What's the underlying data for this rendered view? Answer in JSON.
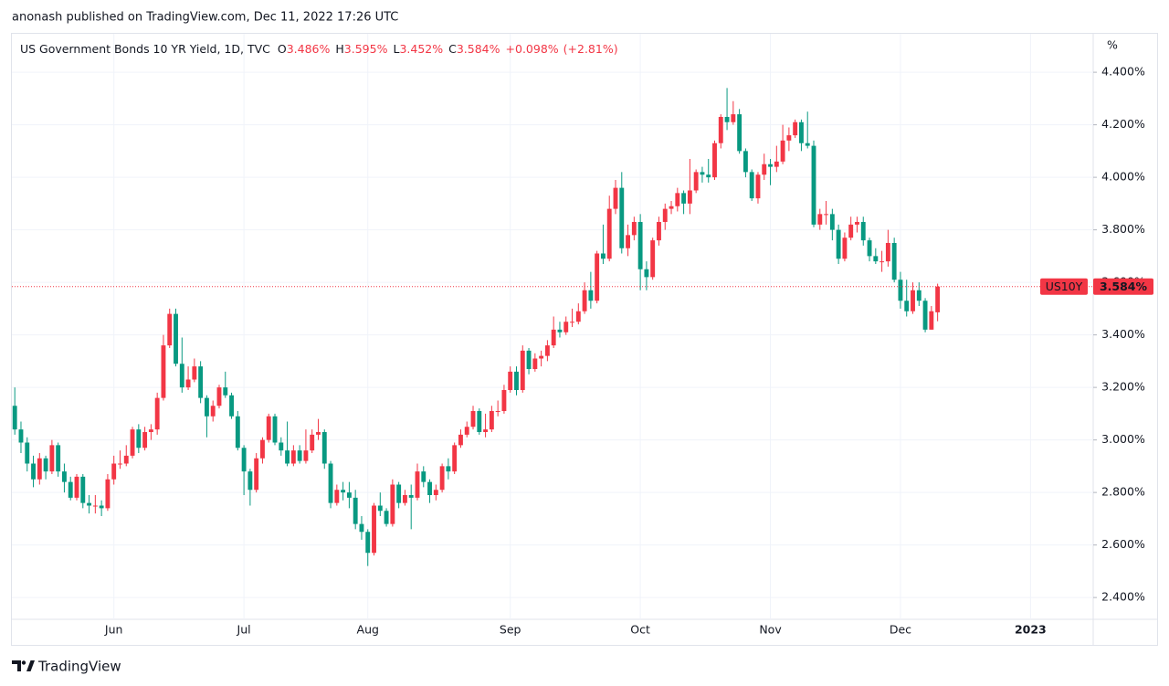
{
  "header": "anonash published on TradingView.com, Dec 11, 2022 17:26 UTC",
  "footer": "TradingView",
  "chart_data": {
    "type": "candlestick",
    "legend": {
      "symbol": "US Government Bonds 10 YR Yield, 1D, TVC",
      "fields": [
        {
          "key": "O",
          "value": "3.486%"
        },
        {
          "key": "H",
          "value": "3.595%"
        },
        {
          "key": "L",
          "value": "3.452%"
        },
        {
          "key": "C",
          "value": "3.584%"
        }
      ],
      "change": "+0.098%",
      "change_percent": "(+2.81%)"
    },
    "y_unit": "%",
    "up_color": "#f23645",
    "down_color": "#089981",
    "grid": true,
    "last_price": {
      "symbol": "US10Y",
      "value": 3.584,
      "label": "3.584%"
    },
    "ylim": [
      2.317,
      4.536
    ],
    "yticks": [
      {
        "value": 2.4,
        "label": "2.400%"
      },
      {
        "value": 2.6,
        "label": "2.600%"
      },
      {
        "value": 2.8,
        "label": "2.800%"
      },
      {
        "value": 3.0,
        "label": "3.000%"
      },
      {
        "value": 3.2,
        "label": "3.200%"
      },
      {
        "value": 3.4,
        "label": "3.400%"
      },
      {
        "value": 3.6,
        "label": "3.600%"
      },
      {
        "value": 3.8,
        "label": "3.800%"
      },
      {
        "value": 4.0,
        "label": "4.000%"
      },
      {
        "value": 4.2,
        "label": "4.200%"
      },
      {
        "value": 4.4,
        "label": "4.400%"
      }
    ],
    "categories": [
      null,
      null,
      null,
      null,
      null,
      null,
      null,
      null,
      null,
      null,
      null,
      null,
      null,
      null,
      null,
      null,
      "Jun",
      null,
      null,
      null,
      null,
      null,
      null,
      null,
      null,
      null,
      null,
      null,
      null,
      null,
      null,
      null,
      null,
      null,
      null,
      null,
      null,
      "Jul",
      null,
      null,
      null,
      null,
      null,
      null,
      null,
      null,
      null,
      null,
      null,
      null,
      null,
      null,
      null,
      null,
      null,
      null,
      null,
      "Aug",
      null,
      null,
      null,
      null,
      null,
      null,
      null,
      null,
      null,
      null,
      null,
      null,
      null,
      null,
      null,
      null,
      null,
      null,
      null,
      null,
      null,
      null,
      "Sep",
      null,
      null,
      null,
      null,
      null,
      null,
      null,
      null,
      null,
      null,
      null,
      null,
      null,
      null,
      null,
      null,
      null,
      null,
      null,
      null,
      "Oct",
      null,
      null,
      null,
      null,
      null,
      null,
      null,
      null,
      null,
      null,
      null,
      null,
      null,
      null,
      null,
      null,
      null,
      null,
      null,
      null,
      "Nov",
      null,
      null,
      null,
      null,
      null,
      null,
      null,
      null,
      null,
      null,
      null,
      null,
      null,
      null,
      null,
      null,
      null,
      null,
      null,
      null,
      "Dec",
      null,
      null,
      null,
      null,
      null,
      null,
      null,
      null,
      null,
      null,
      null,
      null,
      null,
      null,
      null,
      null,
      null,
      null,
      null,
      null,
      "2023",
      null,
      null,
      null,
      null,
      null,
      null,
      null,
      null
    ],
    "open": [
      3.13,
      3.04,
      2.99,
      2.91,
      2.85,
      2.93,
      2.88,
      2.98,
      2.88,
      2.84,
      2.78,
      2.86,
      2.76,
      2.75,
      2.75,
      2.74,
      2.85,
      2.91,
      2.91,
      2.94,
      3.04,
      2.97,
      3.03,
      3.04,
      3.16,
      3.36,
      3.48,
      3.29,
      3.2,
      3.23,
      3.28,
      3.16,
      3.09,
      3.13,
      3.2,
      3.17,
      3.09,
      2.97,
      2.88,
      2.81,
      2.93,
      3.0,
      3.09,
      2.99,
      2.96,
      2.91,
      2.96,
      2.92,
      2.96,
      3.02,
      3.03,
      2.91,
      2.76,
      2.81,
      2.8,
      2.78,
      2.68,
      2.65,
      2.57,
      2.75,
      2.73,
      2.68,
      2.83,
      2.76,
      2.79,
      2.78,
      2.88,
      2.84,
      2.79,
      2.81,
      2.9,
      2.88,
      2.98,
      3.02,
      3.05,
      3.11,
      3.03,
      3.04,
      3.11,
      3.11,
      3.19,
      3.26,
      3.19,
      3.34,
      3.27,
      3.31,
      3.32,
      3.36,
      3.42,
      3.41,
      3.45,
      3.45,
      3.49,
      3.57,
      3.53,
      3.71,
      3.69,
      3.88,
      3.96,
      3.73,
      3.78,
      3.83,
      3.65,
      3.62,
      3.76,
      3.83,
      3.88,
      3.89,
      3.94,
      3.9,
      3.95,
      4.02,
      4.01,
      4.0,
      4.13,
      4.23,
      4.21,
      4.24,
      4.1,
      4.02,
      3.92,
      4.01,
      4.05,
      4.04,
      4.06,
      4.14,
      4.16,
      4.21,
      4.13,
      4.12,
      3.82,
      3.86,
      3.86,
      3.8,
      3.69,
      3.77,
      3.82,
      3.83,
      3.76,
      3.7,
      3.68,
      3.68,
      3.75,
      3.61,
      3.53,
      3.49,
      3.57,
      3.53,
      3.42,
      3.486,
      null,
      null,
      null,
      null,
      null,
      null,
      null,
      null,
      null,
      null,
      null,
      null,
      null,
      null,
      null,
      null,
      null,
      null,
      null,
      null,
      null,
      null,
      null
    ],
    "high": [
      3.2,
      3.07,
      3.01,
      2.94,
      2.95,
      2.94,
      3.0,
      2.99,
      2.91,
      2.86,
      2.87,
      2.87,
      2.79,
      2.79,
      2.77,
      2.87,
      2.94,
      2.96,
      2.98,
      3.05,
      3.06,
      3.05,
      3.06,
      3.18,
      3.4,
      3.5,
      3.5,
      3.39,
      3.28,
      3.31,
      3.3,
      3.17,
      3.15,
      3.21,
      3.26,
      3.18,
      3.11,
      2.98,
      2.89,
      2.95,
      3.01,
      3.1,
      3.1,
      3.01,
      3.07,
      2.98,
      2.98,
      3.04,
      3.04,
      3.08,
      3.04,
      2.92,
      2.83,
      2.84,
      2.84,
      2.81,
      2.71,
      2.66,
      2.76,
      2.8,
      2.74,
      2.85,
      2.84,
      2.81,
      2.83,
      2.91,
      2.9,
      2.85,
      2.83,
      2.91,
      2.93,
      2.99,
      3.04,
      3.07,
      3.13,
      3.12,
      3.1,
      3.13,
      3.15,
      3.21,
      3.28,
      3.28,
      3.36,
      3.35,
      3.33,
      3.34,
      3.38,
      3.47,
      3.45,
      3.47,
      3.5,
      3.52,
      3.6,
      3.64,
      3.72,
      3.82,
      3.93,
      3.99,
      4.02,
      3.82,
      3.85,
      3.86,
      3.68,
      3.77,
      3.85,
      3.9,
      3.91,
      3.96,
      3.95,
      4.07,
      4.03,
      4.04,
      4.07,
      4.14,
      4.24,
      4.34,
      4.29,
      4.26,
      4.11,
      4.03,
      4.02,
      4.09,
      4.07,
      4.12,
      4.2,
      4.19,
      4.22,
      4.22,
      4.25,
      4.14,
      3.88,
      3.91,
      3.88,
      3.82,
      3.79,
      3.85,
      3.85,
      3.85,
      3.77,
      3.73,
      3.72,
      3.8,
      3.77,
      3.64,
      3.61,
      3.6,
      3.6,
      3.54,
      3.51,
      3.595,
      null,
      null,
      null,
      null,
      null,
      null,
      null,
      null,
      null,
      null,
      null,
      null,
      null,
      null,
      null,
      null,
      null,
      null,
      null,
      null,
      null,
      null,
      null
    ],
    "low": [
      3.02,
      2.95,
      2.88,
      2.82,
      2.83,
      2.85,
      2.87,
      2.86,
      2.8,
      2.77,
      2.77,
      2.74,
      2.72,
      2.72,
      2.71,
      2.73,
      2.83,
      2.89,
      2.9,
      2.93,
      2.95,
      2.96,
      3.0,
      3.02,
      3.15,
      3.35,
      3.28,
      3.18,
      3.19,
      3.22,
      3.14,
      3.01,
      3.07,
      3.12,
      3.16,
      3.08,
      2.96,
      2.79,
      2.75,
      2.8,
      2.91,
      2.99,
      2.98,
      2.94,
      2.9,
      2.9,
      2.91,
      2.91,
      2.95,
      3.0,
      2.89,
      2.74,
      2.75,
      2.77,
      2.74,
      2.66,
      2.62,
      2.52,
      2.56,
      2.71,
      2.67,
      2.67,
      2.74,
      2.75,
      2.66,
      2.77,
      2.82,
      2.76,
      2.77,
      2.8,
      2.85,
      2.87,
      2.97,
      3.01,
      3.04,
      3.02,
      3.01,
      3.03,
      3.09,
      3.1,
      3.18,
      3.17,
      3.18,
      3.25,
      3.26,
      3.28,
      3.3,
      3.35,
      3.39,
      3.4,
      3.43,
      3.44,
      3.48,
      3.5,
      3.52,
      3.67,
      3.68,
      3.86,
      3.71,
      3.7,
      3.76,
      3.57,
      3.57,
      3.61,
      3.74,
      3.8,
      3.86,
      3.87,
      3.86,
      3.86,
      3.94,
      3.98,
      3.98,
      3.99,
      4.11,
      4.18,
      4.2,
      4.09,
      4.0,
      3.91,
      3.9,
      3.99,
      3.97,
      4.02,
      4.05,
      4.1,
      4.15,
      4.1,
      4.11,
      3.81,
      3.8,
      3.82,
      3.76,
      3.67,
      3.68,
      3.76,
      3.79,
      3.74,
      3.68,
      3.67,
      3.64,
      3.66,
      3.6,
      3.5,
      3.47,
      3.48,
      3.51,
      3.41,
      3.42,
      3.452,
      null,
      null,
      null,
      null,
      null,
      null,
      null,
      null,
      null,
      null,
      null,
      null,
      null,
      null,
      null,
      null,
      null,
      null,
      null,
      null,
      null,
      null,
      null
    ],
    "close": [
      3.04,
      2.99,
      2.91,
      2.85,
      2.93,
      2.88,
      2.98,
      2.88,
      2.84,
      2.78,
      2.86,
      2.76,
      2.75,
      2.75,
      2.74,
      2.85,
      2.91,
      2.91,
      2.94,
      3.04,
      2.97,
      3.03,
      3.04,
      3.16,
      3.36,
      3.48,
      3.29,
      3.2,
      3.23,
      3.28,
      3.16,
      3.09,
      3.13,
      3.2,
      3.17,
      3.09,
      2.97,
      2.88,
      2.81,
      2.93,
      3.0,
      3.09,
      2.99,
      2.96,
      2.91,
      2.96,
      2.92,
      2.96,
      3.02,
      3.03,
      2.91,
      2.76,
      2.81,
      2.8,
      2.78,
      2.68,
      2.65,
      2.57,
      2.75,
      2.73,
      2.68,
      2.83,
      2.76,
      2.79,
      2.78,
      2.88,
      2.84,
      2.79,
      2.81,
      2.9,
      2.88,
      2.98,
      3.02,
      3.05,
      3.11,
      3.03,
      3.04,
      3.11,
      3.11,
      3.19,
      3.26,
      3.19,
      3.34,
      3.27,
      3.31,
      3.32,
      3.36,
      3.42,
      3.41,
      3.45,
      3.45,
      3.49,
      3.57,
      3.53,
      3.71,
      3.69,
      3.88,
      3.96,
      3.73,
      3.78,
      3.83,
      3.65,
      3.62,
      3.76,
      3.83,
      3.88,
      3.89,
      3.94,
      3.9,
      3.95,
      4.02,
      4.01,
      4.0,
      4.13,
      4.23,
      4.21,
      4.24,
      4.1,
      4.02,
      3.92,
      4.01,
      4.05,
      4.04,
      4.06,
      4.14,
      4.16,
      4.21,
      4.13,
      4.12,
      3.82,
      3.86,
      3.86,
      3.8,
      3.69,
      3.77,
      3.82,
      3.83,
      3.76,
      3.7,
      3.68,
      3.68,
      3.75,
      3.61,
      3.53,
      3.49,
      3.57,
      3.53,
      3.42,
      3.49,
      3.584,
      null,
      null,
      null,
      null,
      null,
      null,
      null,
      null,
      null,
      null,
      null,
      null,
      null,
      null,
      null,
      null,
      null,
      null,
      null,
      null,
      null,
      null,
      null
    ]
  }
}
